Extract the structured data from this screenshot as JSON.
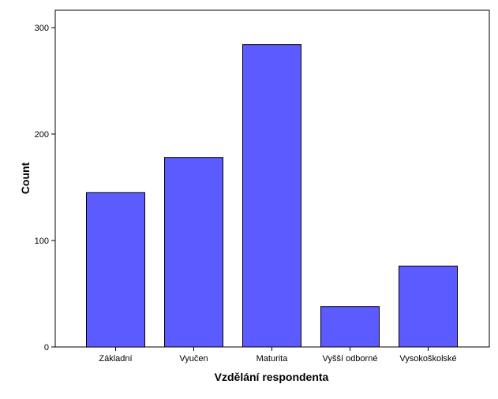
{
  "chart_data": {
    "type": "bar",
    "title": "",
    "xlabel": "Vzdělání respondenta",
    "ylabel": "Count",
    "categories": [
      "Základní",
      "Vyučen",
      "Maturita",
      "Vyšší odborné",
      "Vysokoškolské"
    ],
    "values": [
      145,
      178,
      284,
      38,
      76
    ],
    "ylim": [
      0,
      300
    ],
    "yticks": [
      0,
      100,
      200,
      300
    ],
    "grid": false,
    "legend": "none",
    "colors": {
      "bar_fill": "#5b5bff",
      "bar_stroke": "#000000",
      "plot_background": "#ffffff",
      "axis": "#000000"
    }
  }
}
